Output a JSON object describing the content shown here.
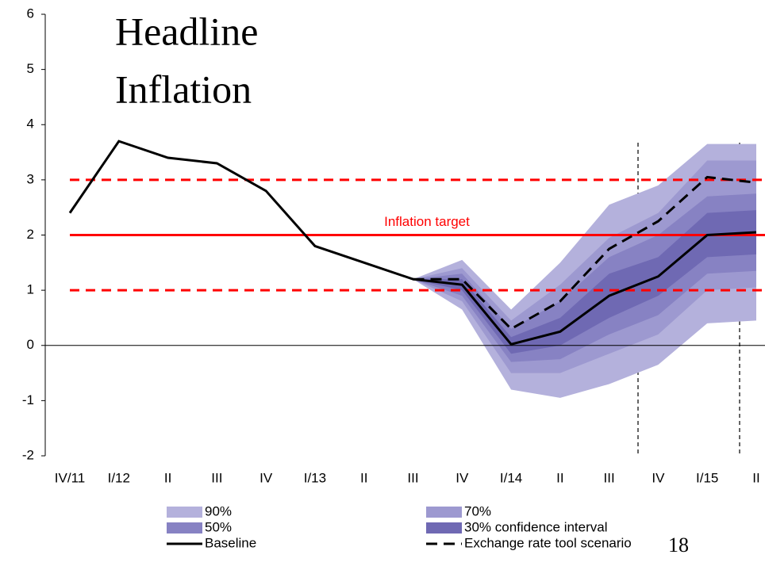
{
  "chart_data": {
    "type": "line",
    "title": [
      "Headline",
      "Inflation"
    ],
    "categories": [
      "IV/11",
      "I/12",
      "II",
      "III",
      "IV",
      "I/13",
      "II",
      "III",
      "IV",
      "I/14",
      "II",
      "III",
      "IV",
      "I/15",
      "II"
    ],
    "ylim": [
      -2,
      6
    ],
    "yticks": [
      -2,
      -1,
      0,
      1,
      2,
      3,
      4,
      5,
      6
    ],
    "bands": [
      {
        "name": "90%",
        "color": "#b4b1dc",
        "lower": [
          null,
          null,
          null,
          null,
          null,
          null,
          null,
          1.2,
          0.65,
          -0.8,
          -0.95,
          -0.7,
          -0.35,
          0.4,
          0.45
        ],
        "upper": [
          null,
          null,
          null,
          null,
          null,
          null,
          null,
          1.2,
          1.55,
          0.65,
          1.5,
          2.55,
          2.9,
          3.65,
          3.65
        ]
      },
      {
        "name": "70%",
        "color": "#9d99d0",
        "lower": [
          null,
          null,
          null,
          null,
          null,
          null,
          null,
          1.2,
          0.8,
          -0.5,
          -0.5,
          -0.15,
          0.2,
          1.0,
          1.05
        ],
        "upper": [
          null,
          null,
          null,
          null,
          null,
          null,
          null,
          1.2,
          1.4,
          0.45,
          1.1,
          1.95,
          2.4,
          3.35,
          3.35
        ]
      },
      {
        "name": "50%",
        "color": "#8782c3",
        "lower": [
          null,
          null,
          null,
          null,
          null,
          null,
          null,
          1.2,
          0.9,
          -0.3,
          -0.25,
          0.2,
          0.55,
          1.3,
          1.35
        ],
        "upper": [
          null,
          null,
          null,
          null,
          null,
          null,
          null,
          1.2,
          1.3,
          0.3,
          0.8,
          1.6,
          2.0,
          2.7,
          2.75
        ]
      },
      {
        "name": "30% confidence interval",
        "color": "#6f69b3",
        "lower": [
          null,
          null,
          null,
          null,
          null,
          null,
          null,
          1.2,
          1.0,
          -0.15,
          0.0,
          0.5,
          0.9,
          1.6,
          1.65
        ],
        "upper": [
          null,
          null,
          null,
          null,
          null,
          null,
          null,
          1.2,
          1.2,
          0.15,
          0.5,
          1.3,
          1.6,
          2.4,
          2.45
        ]
      }
    ],
    "series": [
      {
        "name": "Baseline",
        "color": "#000000",
        "style": "solid",
        "values": [
          2.4,
          3.7,
          3.4,
          3.3,
          2.8,
          1.8,
          1.5,
          1.2,
          1.1,
          0.02,
          0.25,
          0.9,
          1.25,
          2.0,
          2.05
        ]
      },
      {
        "name": "Exchange rate tool scenario",
        "color": "#000000",
        "style": "dashed",
        "values": [
          null,
          null,
          null,
          null,
          null,
          null,
          null,
          1.2,
          1.2,
          0.3,
          0.8,
          1.75,
          2.25,
          3.05,
          2.95
        ]
      }
    ],
    "reference_lines": [
      {
        "value": 2,
        "label": "Inflation target",
        "color": "#ff0000",
        "style": "solid"
      },
      {
        "value": 1,
        "color": "#ff0000",
        "style": "dashed"
      },
      {
        "value": 3,
        "color": "#ff0000",
        "style": "dashed"
      }
    ],
    "page_number": "18"
  }
}
